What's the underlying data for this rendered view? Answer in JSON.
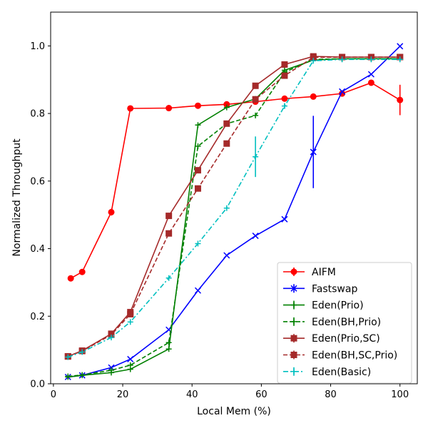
{
  "chart_data": {
    "type": "line",
    "title": "",
    "xlabel": "Local Mem (%)",
    "ylabel": "Normalized Throughput",
    "xlim": [
      -0.8,
      105
    ],
    "ylim": [
      0.0,
      1.1
    ],
    "xticks": [
      0,
      20,
      40,
      60,
      80,
      100
    ],
    "yticks": [
      0.0,
      0.2,
      0.4,
      0.6,
      0.8,
      1.0
    ],
    "xtick_labels": [
      "0",
      "20",
      "40",
      "60",
      "80",
      "100"
    ],
    "ytick_labels": [
      "0.0",
      "0.2",
      "0.4",
      "0.6",
      "0.8",
      "1.0"
    ],
    "grid": false,
    "legend_position": "bottom-right",
    "series": [
      {
        "name": "AIFM",
        "color": "#ff0000",
        "line_style": "solid",
        "marker": "circle",
        "x": [
          5,
          8.3,
          16.7,
          22.2,
          33.3,
          41.7,
          50,
          58.3,
          66.7,
          75,
          83.3,
          91.7,
          100
        ],
        "y": [
          0.312,
          0.331,
          0.508,
          0.815,
          0.816,
          0.823,
          0.827,
          0.835,
          0.844,
          0.85,
          0.859,
          0.891,
          0.84
        ],
        "err": [
          0.004,
          0.004,
          0.01,
          0,
          0,
          0,
          0,
          0,
          0,
          0,
          0,
          0,
          0.045
        ]
      },
      {
        "name": "Fastswap",
        "color": "#0000ff",
        "line_style": "solid",
        "marker": "x",
        "x": [
          4.2,
          8.3,
          16.7,
          22.2,
          33.3,
          41.7,
          50,
          58.3,
          66.7,
          75,
          83.3,
          91.7,
          100
        ],
        "y": [
          0.02,
          0.025,
          0.048,
          0.073,
          0.16,
          0.276,
          0.38,
          0.438,
          0.487,
          0.686,
          0.865,
          0.916,
          0.999
        ],
        "err": [
          0,
          0,
          0,
          0,
          0,
          0,
          0,
          0,
          0,
          0.107,
          0,
          0,
          0
        ]
      },
      {
        "name": "Eden(Prio)",
        "color": "#008000",
        "line_style": "solid",
        "marker": "plus",
        "x": [
          4.2,
          8.3,
          16.7,
          22.2,
          33.3,
          41.7,
          50,
          58.3,
          66.7,
          75,
          83.3,
          91.7,
          100
        ],
        "y": [
          0.02,
          0.025,
          0.033,
          0.043,
          0.103,
          0.766,
          0.818,
          0.843,
          0.928,
          0.958,
          0.962,
          0.962,
          0.962
        ],
        "err": [
          0,
          0,
          0,
          0,
          0,
          0,
          0,
          0,
          0,
          0,
          0,
          0,
          0
        ]
      },
      {
        "name": "Eden(BH,Prio)",
        "color": "#008000",
        "line_style": "dashed",
        "marker": "plus",
        "x": [
          4.2,
          8.3,
          16.7,
          22.2,
          33.3,
          41.7,
          50,
          58.3,
          66.7,
          75,
          83.3,
          91.7,
          100
        ],
        "y": [
          0.022,
          0.026,
          0.04,
          0.055,
          0.122,
          0.703,
          0.77,
          0.794,
          0.922,
          0.96,
          0.962,
          0.962,
          0.962
        ],
        "err": [
          0,
          0,
          0,
          0,
          0,
          0,
          0,
          0,
          0,
          0,
          0,
          0,
          0
        ]
      },
      {
        "name": "Eden(Prio,SC)",
        "color": "#a52a2a",
        "line_style": "solid",
        "marker": "square",
        "x": [
          4.2,
          8.3,
          16.7,
          22.2,
          33.3,
          41.7,
          50,
          58.3,
          66.7,
          75,
          83.3,
          91.7,
          100
        ],
        "y": [
          0.081,
          0.098,
          0.148,
          0.212,
          0.497,
          0.632,
          0.77,
          0.882,
          0.945,
          0.969,
          0.967,
          0.967,
          0.967
        ],
        "err": [
          0,
          0,
          0,
          0,
          0,
          0,
          0,
          0,
          0,
          0,
          0,
          0,
          0
        ]
      },
      {
        "name": "Eden(BH,SC,Prio)",
        "color": "#a52a2a",
        "line_style": "dashed",
        "marker": "square",
        "x": [
          4.2,
          8.3,
          16.7,
          22.2,
          33.3,
          41.7,
          50,
          58.3,
          66.7,
          75,
          83.3,
          91.7,
          100
        ],
        "y": [
          0.081,
          0.097,
          0.145,
          0.206,
          0.445,
          0.578,
          0.711,
          0.842,
          0.912,
          0.966,
          0.967,
          0.967,
          0.967
        ],
        "err": [
          0,
          0,
          0,
          0,
          0,
          0,
          0,
          0,
          0,
          0,
          0,
          0,
          0
        ]
      },
      {
        "name": "Eden(Basic)",
        "color": "#00bfbf",
        "line_style": "dashdot",
        "marker": "plus",
        "x": [
          4.2,
          8.3,
          16.7,
          22.2,
          33.3,
          41.7,
          50,
          58.3,
          66.7,
          75,
          83.3,
          91.7,
          100
        ],
        "y": [
          0.079,
          0.094,
          0.137,
          0.183,
          0.313,
          0.415,
          0.52,
          0.672,
          0.822,
          0.956,
          0.96,
          0.96,
          0.96
        ],
        "err": [
          0,
          0,
          0,
          0,
          0,
          0,
          0,
          0,
          0.008,
          0,
          0,
          0,
          0
        ],
        "err_extra": {
          "x": 58.3,
          "err": 0.06
        }
      }
    ]
  }
}
